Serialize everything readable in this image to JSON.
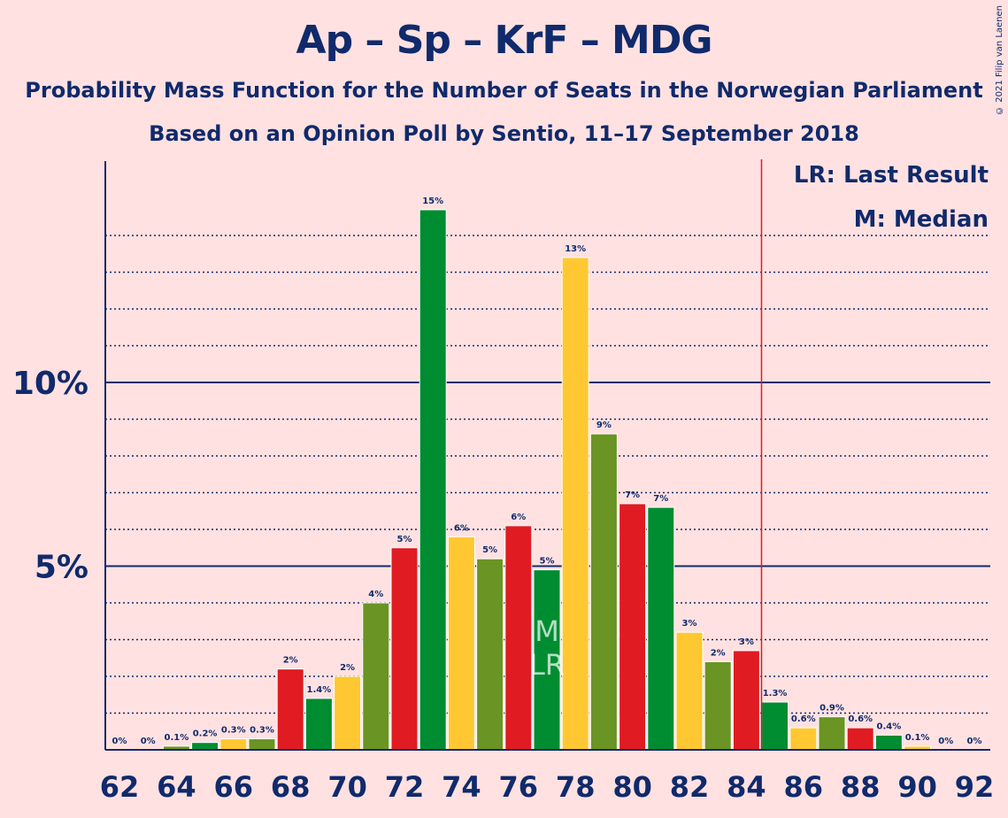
{
  "title": "Ap – Sp – KrF – MDG",
  "subtitle1": "Probability Mass Function for the Number of Seats in the Norwegian Parliament",
  "subtitle2": "Based on an Opinion Poll by Sentio, 11–17 September 2018",
  "legend": {
    "last_result": "LR: Last Result",
    "median": "M: Median"
  },
  "copyright": "© 2021 Filip van Laenen",
  "colors": {
    "background": "#FFE1E1",
    "red": "#E01B22",
    "green": "#008C31",
    "olive": "#6A9423",
    "yellow": "#FFC832",
    "axis": "#102a6b",
    "majority_line": "#E01B22"
  },
  "chart_data": {
    "type": "bar",
    "x": [
      62,
      63,
      64,
      65,
      66,
      67,
      68,
      69,
      70,
      71,
      72,
      73,
      74,
      75,
      76,
      77,
      78,
      79,
      80,
      81,
      82,
      83,
      84,
      85,
      86,
      87,
      88,
      89,
      90,
      91,
      92
    ],
    "values": [
      0,
      0,
      0.1,
      0.2,
      0.3,
      0.3,
      2.2,
      1.4,
      2.0,
      4.0,
      5.5,
      14.7,
      5.8,
      5.2,
      6.1,
      4.9,
      13.4,
      8.6,
      6.7,
      6.6,
      3.2,
      2.4,
      2.7,
      1.3,
      0.6,
      0.9,
      0.6,
      0.4,
      0.1,
      0,
      0
    ],
    "labels": [
      "0%",
      "0%",
      "0.1%",
      "0.2%",
      "0.3%",
      "0.3%",
      "2%",
      "1.4%",
      "2%",
      "4%",
      "5%",
      "15%",
      "6%",
      "5%",
      "6%",
      "5%",
      "13%",
      "9%",
      "7%",
      "7%",
      "3%",
      "2%",
      "3%",
      "1.3%",
      "0.6%",
      "0.9%",
      "0.6%",
      "0.4%",
      "0.1%",
      "0%",
      "0%"
    ],
    "bar_colors": [
      "red",
      "green",
      "olive",
      "green",
      "yellow",
      "olive",
      "red",
      "green",
      "yellow",
      "olive",
      "red",
      "green",
      "yellow",
      "olive",
      "red",
      "green",
      "yellow",
      "olive",
      "red",
      "green",
      "yellow",
      "olive",
      "red",
      "green",
      "yellow",
      "olive",
      "red",
      "green",
      "yellow",
      "olive",
      "red"
    ],
    "x_tick_labels": [
      "62",
      "64",
      "66",
      "68",
      "70",
      "72",
      "74",
      "76",
      "78",
      "80",
      "82",
      "84",
      "86",
      "88",
      "90",
      "92"
    ],
    "y_tick_labels": [
      "5%",
      "10%"
    ],
    "y_ticks": [
      5,
      10
    ],
    "ylim": [
      0,
      16
    ],
    "median": 77,
    "median_marker": "M",
    "last_result": 77,
    "last_result_marker": "LR",
    "majority_threshold": 84.5,
    "grid": true
  }
}
